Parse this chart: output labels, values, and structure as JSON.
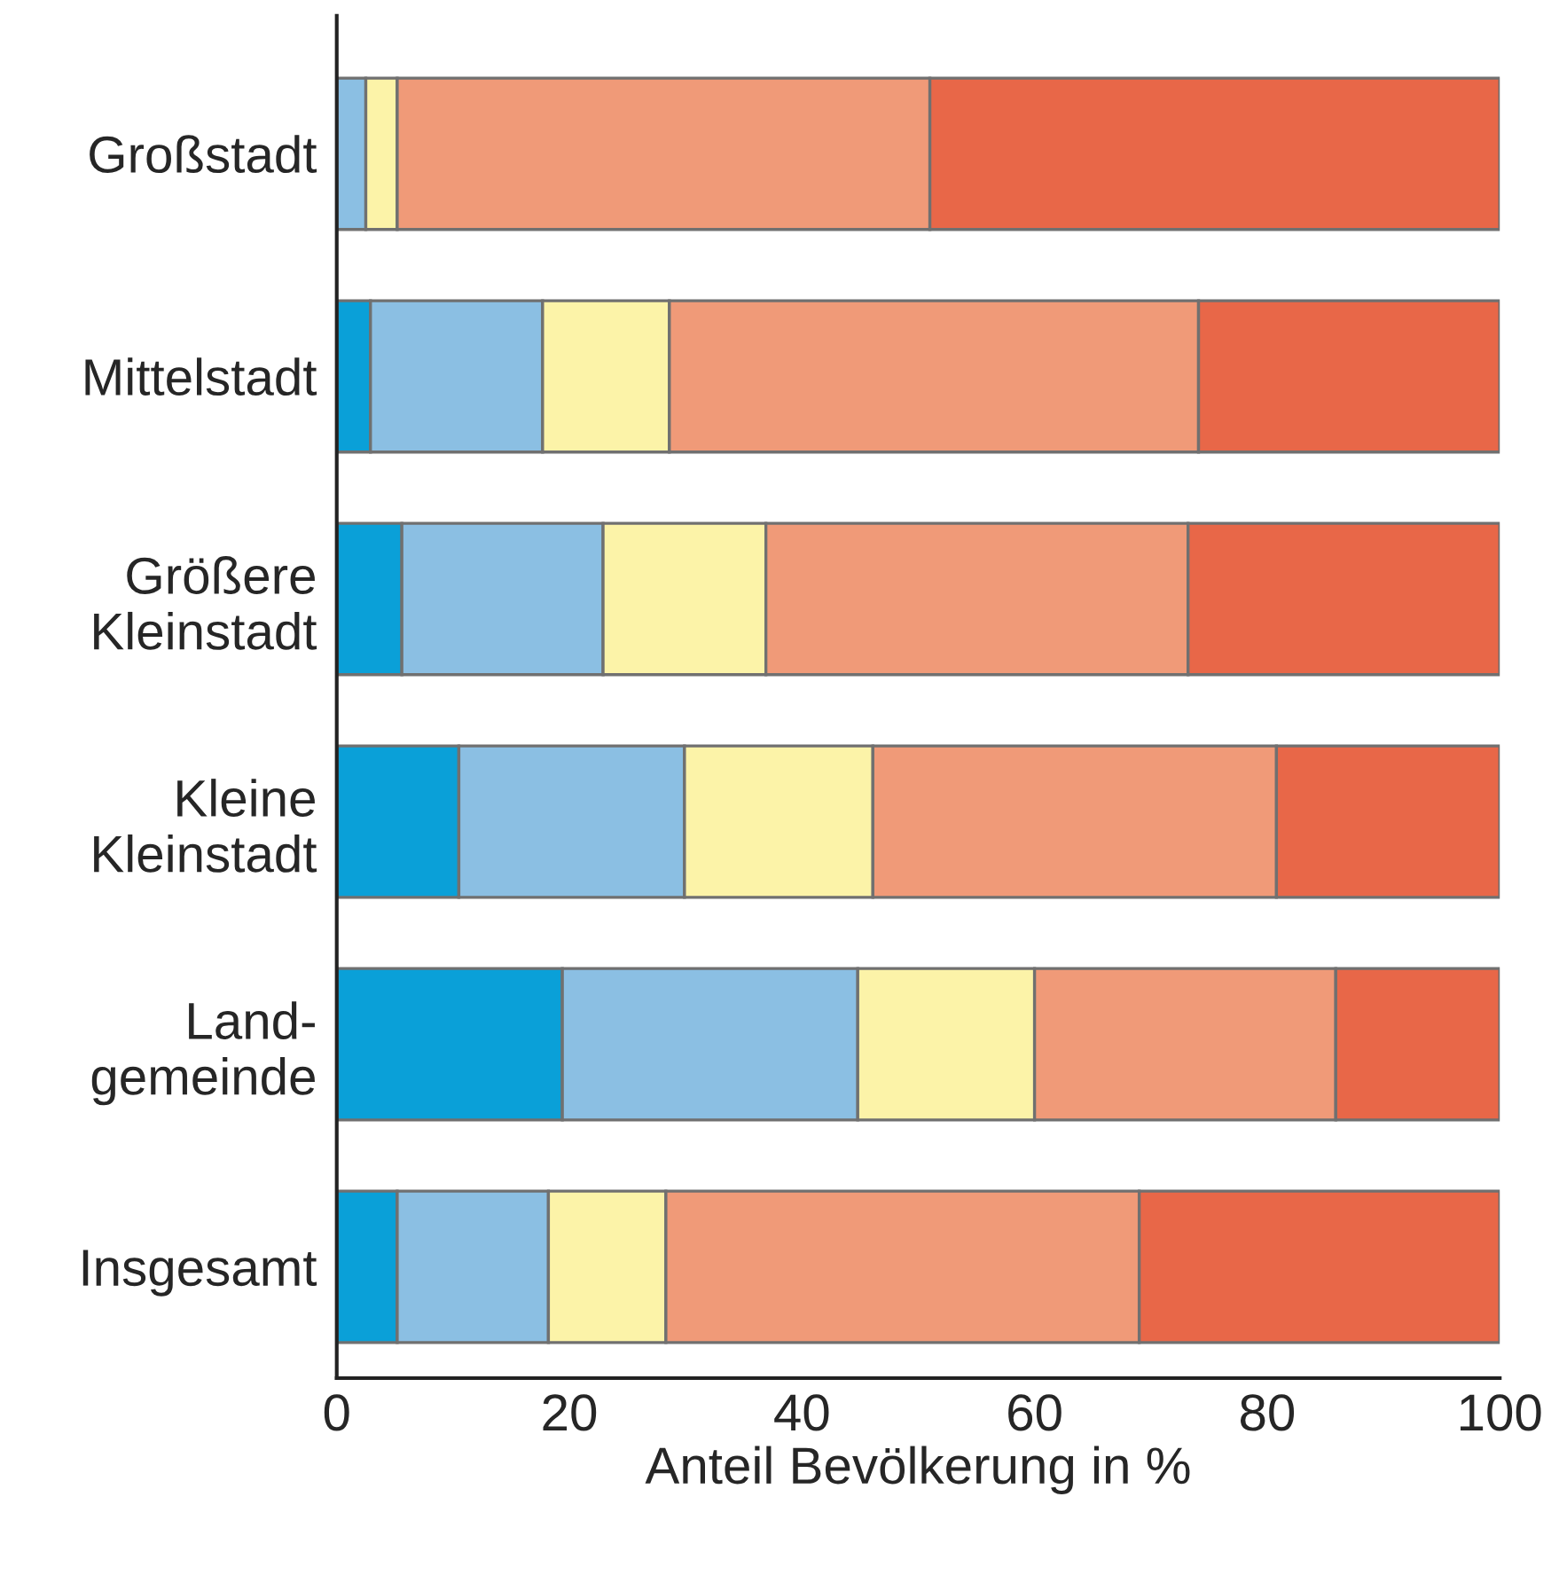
{
  "chart_data": {
    "type": "bar",
    "orientation": "horizontal",
    "stacked": true,
    "categories": [
      "Großstadt",
      "Mittelstadt",
      "Größere\nKleinstadt",
      "Kleine\nKleinstadt",
      "Land-\ngemeinde",
      "Insgesamt"
    ],
    "series": [
      {
        "color": "#0aa0d8",
        "values": [
          0,
          2.9,
          5.6,
          10.5,
          19.4,
          5.2
        ]
      },
      {
        "color": "#8bbfe3",
        "values": [
          2.5,
          14.8,
          17.3,
          19.4,
          25.4,
          13.0
        ]
      },
      {
        "color": "#fcf3a8",
        "values": [
          2.7,
          10.9,
          14.0,
          16.2,
          15.2,
          10.1
        ]
      },
      {
        "color": "#f09a78",
        "values": [
          45.8,
          45.5,
          36.3,
          34.7,
          25.9,
          40.7
        ]
      },
      {
        "color": "#e86748",
        "values": [
          49.0,
          25.9,
          26.8,
          19.2,
          14.1,
          31.0
        ]
      }
    ],
    "xlabel": "Anteil Bevölkerung in %",
    "xlim": [
      0,
      100
    ],
    "xticks": [
      0,
      20,
      40,
      60,
      80,
      100
    ],
    "grid": false,
    "legend": false
  }
}
